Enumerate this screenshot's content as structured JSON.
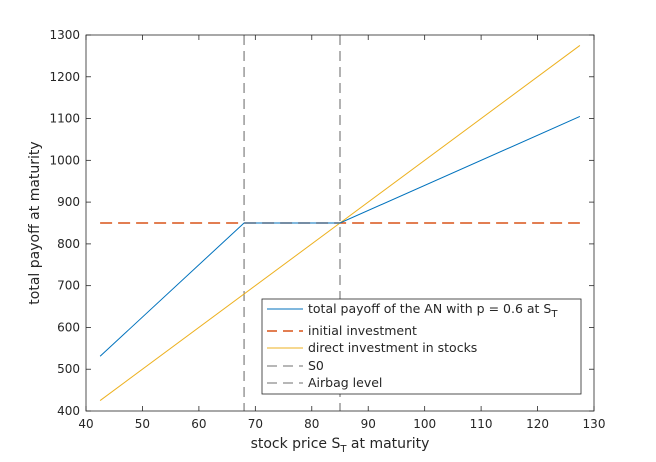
{
  "chart_data": {
    "type": "line",
    "xlabel": {
      "main": "stock price S",
      "sub": "T",
      "tail": " at maturity"
    },
    "ylabel": "total payoff at maturity",
    "xlim": [
      40,
      130
    ],
    "ylim": [
      400,
      1300
    ],
    "xticks": [
      40,
      50,
      60,
      70,
      80,
      90,
      100,
      110,
      120,
      130
    ],
    "yticks": [
      400,
      500,
      600,
      700,
      800,
      900,
      1000,
      1100,
      1200,
      1300
    ],
    "grid": false,
    "legend_position": "bottom-right",
    "series": [
      {
        "name": "total payoff of the AN with p = 0.6 at S",
        "name_sub": "T",
        "color": "#0072bd",
        "style": "solid",
        "x": [
          42.5,
          68,
          85,
          127.5
        ],
        "y": [
          531,
          850,
          850,
          1105
        ]
      },
      {
        "name": "initial investment",
        "color": "#d95319",
        "style": "dashed",
        "x": [
          42.5,
          127.5
        ],
        "y": [
          850,
          850
        ]
      },
      {
        "name": "direct investment in stocks",
        "color": "#edb120",
        "style": "solid",
        "x": [
          42.5,
          127.5
        ],
        "y": [
          425,
          1275
        ]
      },
      {
        "name": "S0",
        "color": "#404040",
        "style": "dashed",
        "vertical_x": 85
      },
      {
        "name": "Airbag level",
        "color": "#404040",
        "style": "dashed",
        "vertical_x": 68
      }
    ]
  }
}
